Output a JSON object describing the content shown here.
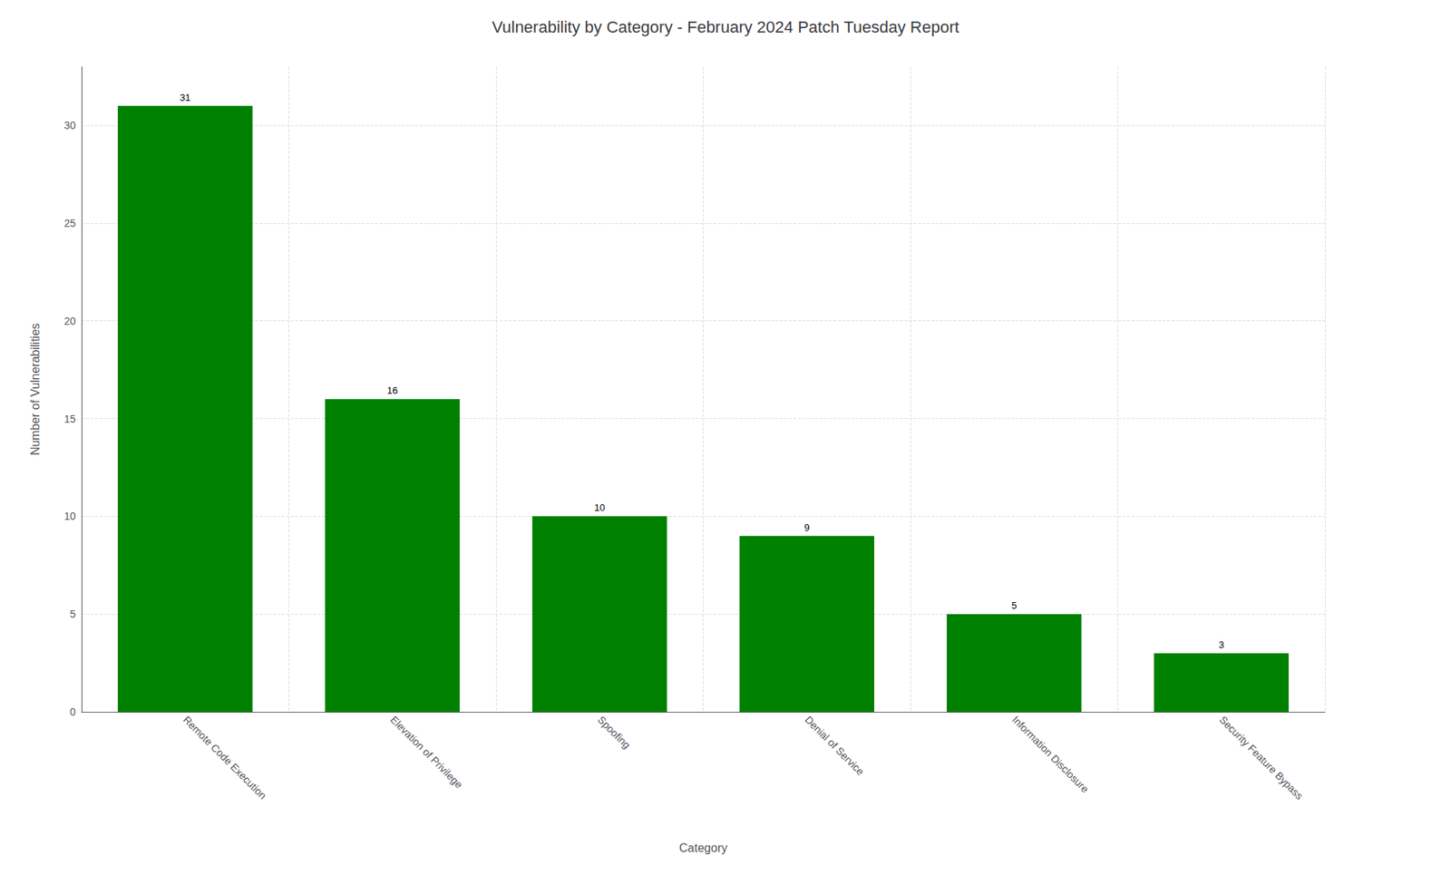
{
  "chart_data": {
    "type": "bar",
    "title": "Vulnerability by Category - February 2024 Patch Tuesday Report",
    "xlabel": "Category",
    "ylabel": "Number of Vulnerabilities",
    "categories": [
      "Remote Code Execution",
      "Elevation of Privilege",
      "Spoofing",
      "Denial of Service",
      "Information Disclosure",
      "Security Feature Bypass"
    ],
    "values": [
      31,
      16,
      10,
      9,
      5,
      3
    ],
    "color": "#008000",
    "ylim": [
      0,
      33
    ],
    "yticks": [
      0,
      5,
      10,
      15,
      20,
      25,
      30
    ],
    "grid": true,
    "data_labels": true
  }
}
